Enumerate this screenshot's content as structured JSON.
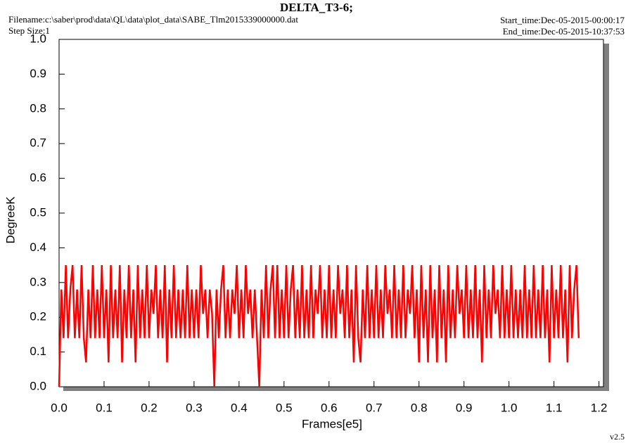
{
  "chart_data": {
    "type": "line",
    "title": "DELTA_T3-6;",
    "filename": "Filename:c:\\saber\\prod\\data\\QL\\data\\plot_data\\SABE_Tlm2015339000000.dat",
    "step_size": "Step Size:1",
    "start_time": "Start_time:Dec-05-2015-00:00:17",
    "end_time": "End_time:Dec-05-2015-10:37:53",
    "y_label": "DegreeK",
    "x_label": "Frames[e5]",
    "version": "v2.5",
    "color": "#ff0000",
    "xlim": [
      0,
      1.21
    ],
    "ylim": [
      0,
      1
    ],
    "xticks": [
      {
        "value": 0,
        "label": "0.0"
      },
      0.1,
      0.2,
      0.3,
      0.4,
      0.5,
      0.6,
      0.7,
      0.8,
      0.9,
      {
        "value": 1,
        "label": "1.0"
      },
      1.1,
      1.2
    ],
    "yticks": [
      {
        "value": 0,
        "label": "0.0"
      },
      0.1,
      0.2,
      0.3,
      0.4,
      0.5,
      0.6,
      0.7,
      0.8,
      0.9,
      {
        "value": 1,
        "label": "1.0"
      }
    ],
    "x": [
      0,
      0.005,
      0.01,
      0.015,
      0.02,
      0.025,
      0.03,
      0.035,
      0.04,
      0.045,
      0.05,
      0.055,
      0.06,
      0.065,
      0.07,
      0.075,
      0.08,
      0.085,
      0.09,
      0.095,
      0.1,
      0.105,
      0.11,
      0.115,
      0.12,
      0.125,
      0.13,
      0.135,
      0.14,
      0.145,
      0.15,
      0.155,
      0.16,
      0.165,
      0.17,
      0.175,
      0.18,
      0.185,
      0.19,
      0.195,
      0.2,
      0.205,
      0.21,
      0.215,
      0.22,
      0.225,
      0.23,
      0.235,
      0.24,
      0.245,
      0.25,
      0.255,
      0.26,
      0.265,
      0.27,
      0.275,
      0.28,
      0.285,
      0.29,
      0.295,
      0.3,
      0.305,
      0.31,
      0.315,
      0.32,
      0.325,
      0.33,
      0.335,
      0.34,
      0.345,
      0.35,
      0.355,
      0.36,
      0.365,
      0.37,
      0.375,
      0.38,
      0.385,
      0.39,
      0.395,
      0.4,
      0.405,
      0.41,
      0.415,
      0.42,
      0.425,
      0.43,
      0.435,
      0.44,
      0.445,
      0.45,
      0.455,
      0.46,
      0.465,
      0.47,
      0.475,
      0.48,
      0.485,
      0.49,
      0.495,
      0.5,
      0.505,
      0.51,
      0.515,
      0.52,
      0.525,
      0.53,
      0.535,
      0.54,
      0.545,
      0.55,
      0.555,
      0.56,
      0.565,
      0.57,
      0.575,
      0.58,
      0.585,
      0.59,
      0.595,
      0.6,
      0.605,
      0.61,
      0.615,
      0.62,
      0.625,
      0.63,
      0.635,
      0.64,
      0.645,
      0.65,
      0.655,
      0.66,
      0.665,
      0.67,
      0.675,
      0.68,
      0.685,
      0.69,
      0.695,
      0.7,
      0.705,
      0.71,
      0.715,
      0.72,
      0.725,
      0.73,
      0.735,
      0.74,
      0.745,
      0.75,
      0.755,
      0.76,
      0.765,
      0.77,
      0.775,
      0.78,
      0.785,
      0.79,
      0.795,
      0.8,
      0.805,
      0.81,
      0.815,
      0.82,
      0.825,
      0.83,
      0.835,
      0.84,
      0.845,
      0.85,
      0.855,
      0.86,
      0.865,
      0.87,
      0.875,
      0.88,
      0.885,
      0.89,
      0.895,
      0.9,
      0.905,
      0.91,
      0.915,
      0.92,
      0.925,
      0.93,
      0.935,
      0.94,
      0.945,
      0.95,
      0.955,
      0.96,
      0.965,
      0.97,
      0.975,
      0.98,
      0.985,
      0.99,
      0.995,
      1,
      1.005,
      1.01,
      1.015,
      1.02,
      1.025,
      1.03,
      1.035,
      1.04,
      1.045,
      1.05,
      1.055,
      1.06,
      1.065,
      1.07,
      1.075,
      1.08,
      1.085,
      1.09,
      1.095,
      1.1,
      1.105,
      1.11,
      1.115,
      1.12,
      1.125,
      1.13,
      1.135,
      1.14,
      1.145,
      1.15,
      1.155
    ],
    "values": [
      0,
      0.28,
      0.14,
      0.35,
      0.14,
      0.28,
      0.35,
      0.14,
      0.28,
      0.14,
      0.35,
      0.14,
      0.07,
      0.28,
      0.14,
      0.35,
      0.14,
      0.28,
      0.14,
      0.35,
      0.14,
      0.28,
      0.07,
      0.35,
      0.14,
      0.28,
      0.14,
      0.35,
      0.07,
      0.28,
      0.14,
      0.35,
      0.14,
      0.28,
      0.07,
      0.35,
      0.14,
      0.28,
      0.14,
      0.35,
      0.14,
      0.28,
      0.21,
      0.35,
      0.14,
      0.28,
      0.14,
      0.35,
      0.07,
      0.28,
      0.14,
      0.35,
      0.14,
      0.28,
      0.14,
      0.28,
      0.14,
      0.35,
      0.14,
      0.28,
      0.14,
      0.28,
      0.14,
      0.35,
      0.21,
      0.28,
      0.14,
      0.28,
      0.21,
      0,
      0.28,
      0.14,
      0.28,
      0.35,
      0.14,
      0.28,
      0.14,
      0.28,
      0.21,
      0.35,
      0.14,
      0.28,
      0.14,
      0.35,
      0.21,
      0.28,
      0.14,
      0.28,
      0.14,
      0,
      0.28,
      0.14,
      0.35,
      0.14,
      0.28,
      0.35,
      0.14,
      0.35,
      0.14,
      0.28,
      0.14,
      0.35,
      0.14,
      0.28,
      0.35,
      0.14,
      0.28,
      0.14,
      0.35,
      0.14,
      0.28,
      0.14,
      0.35,
      0.14,
      0.28,
      0.21,
      0.35,
      0.14,
      0.28,
      0.14,
      0.35,
      0.14,
      0.28,
      0.14,
      0.35,
      0.21,
      0.28,
      0.14,
      0.35,
      0.14,
      0.28,
      0.07,
      0.35,
      0.14,
      0.07,
      0.28,
      0.14,
      0.35,
      0.14,
      0.28,
      0.14,
      0.35,
      0.14,
      0.28,
      0.14,
      0.35,
      0.21,
      0.28,
      0.14,
      0.35,
      0.14,
      0.28,
      0.14,
      0.35,
      0.14,
      0.28,
      0.21,
      0.35,
      0.14,
      0.28,
      0.07,
      0.35,
      0.14,
      0.28,
      0.07,
      0.35,
      0.14,
      0.28,
      0.07,
      0.35,
      0.14,
      0.28,
      0.07,
      0.35,
      0.14,
      0.28,
      0.14,
      0.35,
      0.21,
      0.28,
      0.14,
      0.35,
      0.14,
      0.28,
      0.14,
      0.35,
      0.14,
      0.28,
      0.07,
      0.35,
      0.14,
      0.28,
      0.14,
      0.35,
      0.21,
      0.28,
      0.14,
      0.35,
      0.14,
      0.28,
      0.14,
      0.35,
      0.14,
      0.28,
      0.14,
      0.28,
      0.14,
      0.35,
      0.14,
      0.28,
      0.14,
      0.35,
      0.14,
      0.28,
      0.14,
      0.35,
      0.14,
      0.28,
      0.07,
      0.35,
      0.14,
      0.28,
      0.14,
      0.35,
      0.14,
      0.28,
      0.07,
      0.35,
      0.14,
      0.28,
      0.35,
      0.14
    ]
  }
}
